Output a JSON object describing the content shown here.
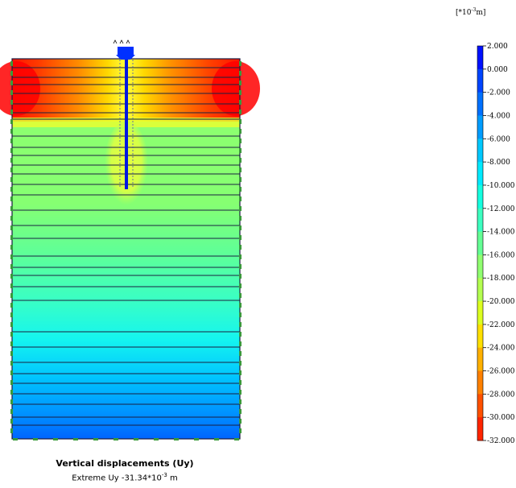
{
  "plot": {
    "title": "Vertical displacements (Uy)",
    "extreme_prefix": "Extreme Uy -31.34*10",
    "extreme_exp": "-3",
    "extreme_suffix": " m"
  },
  "legend": {
    "unit_prefix": "[*10",
    "unit_exp": "-3",
    "unit_suffix": "m]",
    "ticks": [
      "2.000",
      "0.000",
      "-2.000",
      "-4.000",
      "-6.000",
      "-8.000",
      "-10.000",
      "-12.000",
      "-14.000",
      "-16.000",
      "-18.000",
      "-20.000",
      "-22.000",
      "-24.000",
      "-26.000",
      "-28.000",
      "-30.000",
      "-32.000"
    ],
    "colors": [
      "#0010ff",
      "#0044ff",
      "#0070ff",
      "#009cff",
      "#00c8ff",
      "#00eaff",
      "#14ffe0",
      "#3cffc0",
      "#64ff94",
      "#90ff70",
      "#b4ff50",
      "#dcff20",
      "#ffe000",
      "#ffb000",
      "#ff8000",
      "#ff5000",
      "#ff2400",
      "#ff0000"
    ]
  },
  "chart_data": {
    "type": "heatmap",
    "title": "Vertical displacements (Uy)",
    "quantity": "Uy",
    "unit": "*10^-3 m",
    "extreme_value": -31.34,
    "colorbar_min": -32.0,
    "colorbar_max": 2.0,
    "colorbar_step": 2.0,
    "colorbar_ticks": [
      2.0,
      0.0,
      -2.0,
      -4.0,
      -6.0,
      -8.0,
      -10.0,
      -12.0,
      -14.0,
      -16.0,
      -18.0,
      -20.0,
      -22.0,
      -24.0,
      -26.0,
      -28.0,
      -30.0,
      -32.0
    ]
  }
}
